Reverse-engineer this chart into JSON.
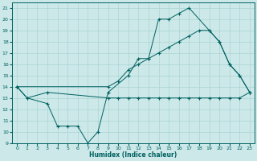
{
  "xlabel": "Humidex (Indice chaleur)",
  "bg_color": "#cce8e8",
  "line_color": "#006060",
  "xlim": [
    -0.5,
    23.5
  ],
  "ylim": [
    9,
    21.5
  ],
  "yticks": [
    9,
    10,
    11,
    12,
    13,
    14,
    15,
    16,
    17,
    18,
    19,
    20,
    21
  ],
  "xticks": [
    0,
    1,
    2,
    3,
    4,
    5,
    6,
    7,
    8,
    9,
    10,
    11,
    12,
    13,
    14,
    15,
    16,
    17,
    18,
    19,
    20,
    21,
    22,
    23
  ],
  "line1_x": [
    0,
    1,
    3,
    4,
    5,
    6,
    7,
    8,
    9,
    11,
    12,
    13,
    14,
    15,
    16,
    17,
    19,
    20,
    21,
    22,
    23
  ],
  "line1_y": [
    14,
    13,
    12.5,
    10.5,
    10.5,
    10.5,
    9,
    10,
    13.5,
    15,
    16.5,
    16.5,
    20,
    20,
    20.5,
    21,
    19,
    18,
    16,
    15,
    13.5
  ],
  "line2_x": [
    0,
    1,
    3,
    9,
    10,
    11,
    12,
    13,
    14,
    15,
    16,
    17,
    18,
    19,
    20,
    21,
    22,
    23
  ],
  "line2_y": [
    14,
    13,
    13.5,
    13,
    13,
    13,
    13,
    13,
    13,
    13,
    13,
    13,
    13,
    13,
    13,
    13,
    13,
    13.5
  ],
  "line3_x": [
    0,
    9,
    10,
    11,
    12,
    13,
    14,
    15,
    16,
    17,
    18,
    19,
    20,
    21,
    22,
    23
  ],
  "line3_y": [
    14,
    14,
    14.5,
    15.5,
    16,
    16.5,
    17,
    17.5,
    18,
    18.5,
    19,
    19,
    18,
    16,
    15,
    13.5
  ],
  "grid_color": "#aad4d4"
}
